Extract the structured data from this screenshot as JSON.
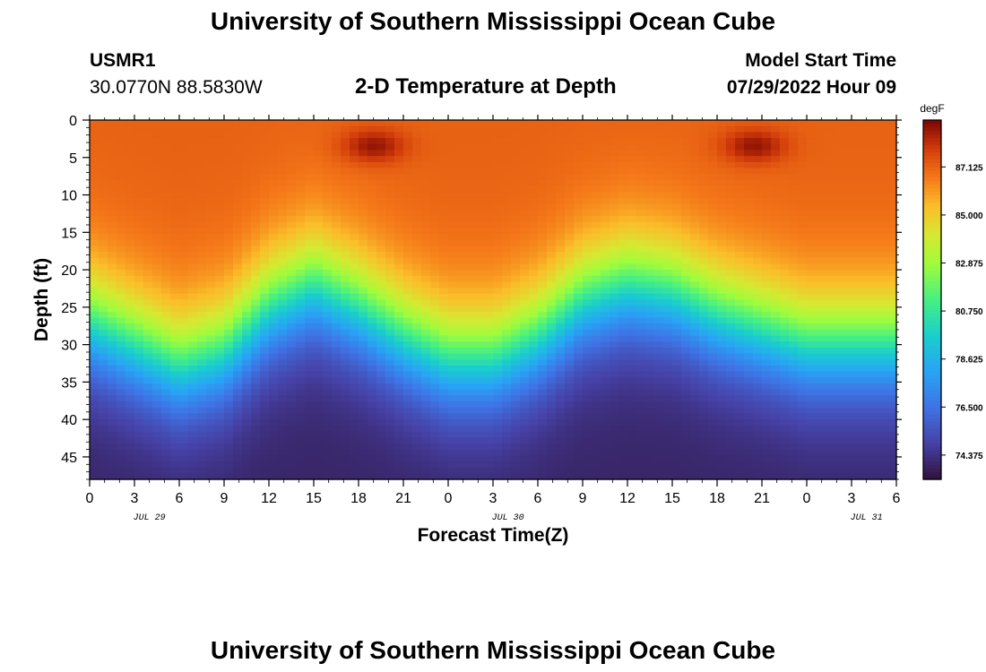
{
  "title": "University of Southern Mississippi Ocean Cube",
  "footer_title": "University of Southern Mississippi Ocean Cube",
  "station": {
    "id": "USMR1",
    "coords": "30.0770N  88.5830W"
  },
  "model": {
    "label": "Model Start Time",
    "start": "07/29/2022 Hour 09"
  },
  "chart_data": {
    "type": "heatmap",
    "title": "2-D Temperature at Depth",
    "xlabel": "Forecast Time(Z)",
    "ylabel": "Depth (ft)",
    "x_ticks": [
      "0",
      "3",
      "6",
      "9",
      "12",
      "15",
      "18",
      "21",
      "0",
      "3",
      "6",
      "9",
      "12",
      "15",
      "18",
      "21",
      "0",
      "3",
      "6"
    ],
    "x_range_hours": [
      0,
      54
    ],
    "date_labels": [
      {
        "label": "JUL 29",
        "hour": 4
      },
      {
        "label": "JUL 30",
        "hour": 28
      },
      {
        "label": "JUL 31",
        "hour": 52
      }
    ],
    "y_ticks": [
      0,
      5,
      10,
      15,
      20,
      25,
      30,
      35,
      40,
      45
    ],
    "ylim": [
      0,
      48
    ],
    "colorbar": {
      "units": "degF",
      "ticks": [
        "87.125",
        "85.000",
        "82.875",
        "80.750",
        "78.625",
        "76.500",
        "74.375"
      ],
      "range": [
        73.3,
        89.2
      ]
    },
    "thermocline_depth_ft": [
      {
        "hour": 0,
        "depth": 27
      },
      {
        "hour": 3,
        "depth": 30
      },
      {
        "hour": 6,
        "depth": 33
      },
      {
        "hour": 9,
        "depth": 31
      },
      {
        "hour": 12,
        "depth": 25
      },
      {
        "hour": 15,
        "depth": 22
      },
      {
        "hour": 18,
        "depth": 25
      },
      {
        "hour": 21,
        "depth": 29
      },
      {
        "hour": 24,
        "depth": 32
      },
      {
        "hour": 27,
        "depth": 32
      },
      {
        "hour": 30,
        "depth": 29
      },
      {
        "hour": 33,
        "depth": 24
      },
      {
        "hour": 36,
        "depth": 22
      },
      {
        "hour": 39,
        "depth": 23
      },
      {
        "hour": 42,
        "depth": 26
      },
      {
        "hour": 45,
        "depth": 28
      },
      {
        "hour": 48,
        "depth": 30
      },
      {
        "hour": 51,
        "depth": 30
      },
      {
        "hour": 54,
        "depth": 30
      }
    ],
    "warm_cores": [
      {
        "hour": 19,
        "depth": 3.5
      },
      {
        "hour": 44.5,
        "depth": 3.5
      }
    ]
  }
}
